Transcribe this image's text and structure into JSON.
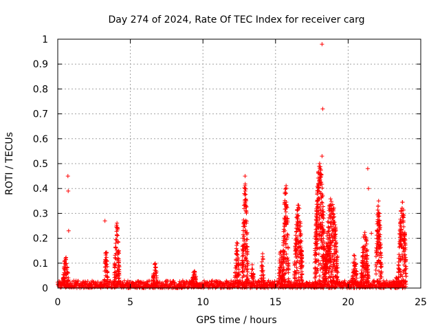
{
  "chart_data": {
    "type": "scatter",
    "title": "Day 274 of 2024, Rate Of TEC Index for receiver carg",
    "xlabel": "GPS time / hours",
    "ylabel": "ROTI / TECUs",
    "xlim": [
      0,
      25
    ],
    "ylim": [
      0,
      1
    ],
    "xticks": [
      0,
      5,
      10,
      15,
      20,
      25
    ],
    "yticks": [
      0,
      0.1,
      0.2,
      0.3,
      0.4,
      0.5,
      0.6,
      0.7,
      0.8,
      0.9,
      1
    ],
    "xtick_labels": [
      "0",
      "5",
      "10",
      "15",
      "20",
      "25"
    ],
    "ytick_labels": [
      "0",
      "0.1",
      "0.2",
      "0.3",
      "0.4",
      "0.5",
      "0.6",
      "0.7",
      "0.8",
      "0.9",
      "1"
    ],
    "grid": true,
    "marker": "+",
    "color": "#ff0000",
    "baseline": {
      "x_start": 0.0,
      "x_end": 24.0,
      "step": 0.03,
      "y_max": 0.03
    },
    "bursts": [
      {
        "x_start": 0.35,
        "x_end": 0.75,
        "y_peak": 0.13
      },
      {
        "x_start": 3.2,
        "x_end": 3.45,
        "y_peak": 0.16
      },
      {
        "x_start": 3.9,
        "x_end": 4.25,
        "y_peak": 0.27
      },
      {
        "x_start": 6.55,
        "x_end": 6.85,
        "y_peak": 0.1
      },
      {
        "x_start": 9.2,
        "x_end": 9.6,
        "y_peak": 0.07
      },
      {
        "x_start": 12.2,
        "x_end": 12.5,
        "y_peak": 0.19
      },
      {
        "x_start": 12.7,
        "x_end": 13.1,
        "y_peak": 0.42
      },
      {
        "x_start": 13.3,
        "x_end": 13.5,
        "y_peak": 0.1
      },
      {
        "x_start": 14.0,
        "x_end": 14.2,
        "y_peak": 0.14
      },
      {
        "x_start": 15.2,
        "x_end": 15.5,
        "y_peak": 0.15
      },
      {
        "x_start": 15.5,
        "x_end": 15.9,
        "y_peak": 0.42
      },
      {
        "x_start": 16.3,
        "x_end": 16.85,
        "y_peak": 0.35
      },
      {
        "x_start": 17.7,
        "x_end": 18.4,
        "y_peak": 0.51
      },
      {
        "x_start": 18.4,
        "x_end": 19.3,
        "y_peak": 0.37
      },
      {
        "x_start": 20.3,
        "x_end": 20.6,
        "y_peak": 0.15
      },
      {
        "x_start": 20.9,
        "x_end": 21.4,
        "y_peak": 0.24
      },
      {
        "x_start": 21.9,
        "x_end": 22.3,
        "y_peak": 0.35
      },
      {
        "x_start": 23.2,
        "x_end": 23.45,
        "y_peak": 0.05
      },
      {
        "x_start": 23.45,
        "x_end": 24.0,
        "y_peak": 0.35
      }
    ],
    "outliers": [
      {
        "x": 0.7,
        "y": 0.45
      },
      {
        "x": 0.72,
        "y": 0.39
      },
      {
        "x": 0.75,
        "y": 0.23
      },
      {
        "x": 3.25,
        "y": 0.27
      },
      {
        "x": 12.9,
        "y": 0.45
      },
      {
        "x": 18.2,
        "y": 0.98
      },
      {
        "x": 18.25,
        "y": 0.72
      },
      {
        "x": 18.2,
        "y": 0.53
      },
      {
        "x": 21.35,
        "y": 0.48
      },
      {
        "x": 21.4,
        "y": 0.4
      },
      {
        "x": 21.6,
        "y": 0.22
      },
      {
        "x": 22.1,
        "y": 0.35
      }
    ]
  }
}
